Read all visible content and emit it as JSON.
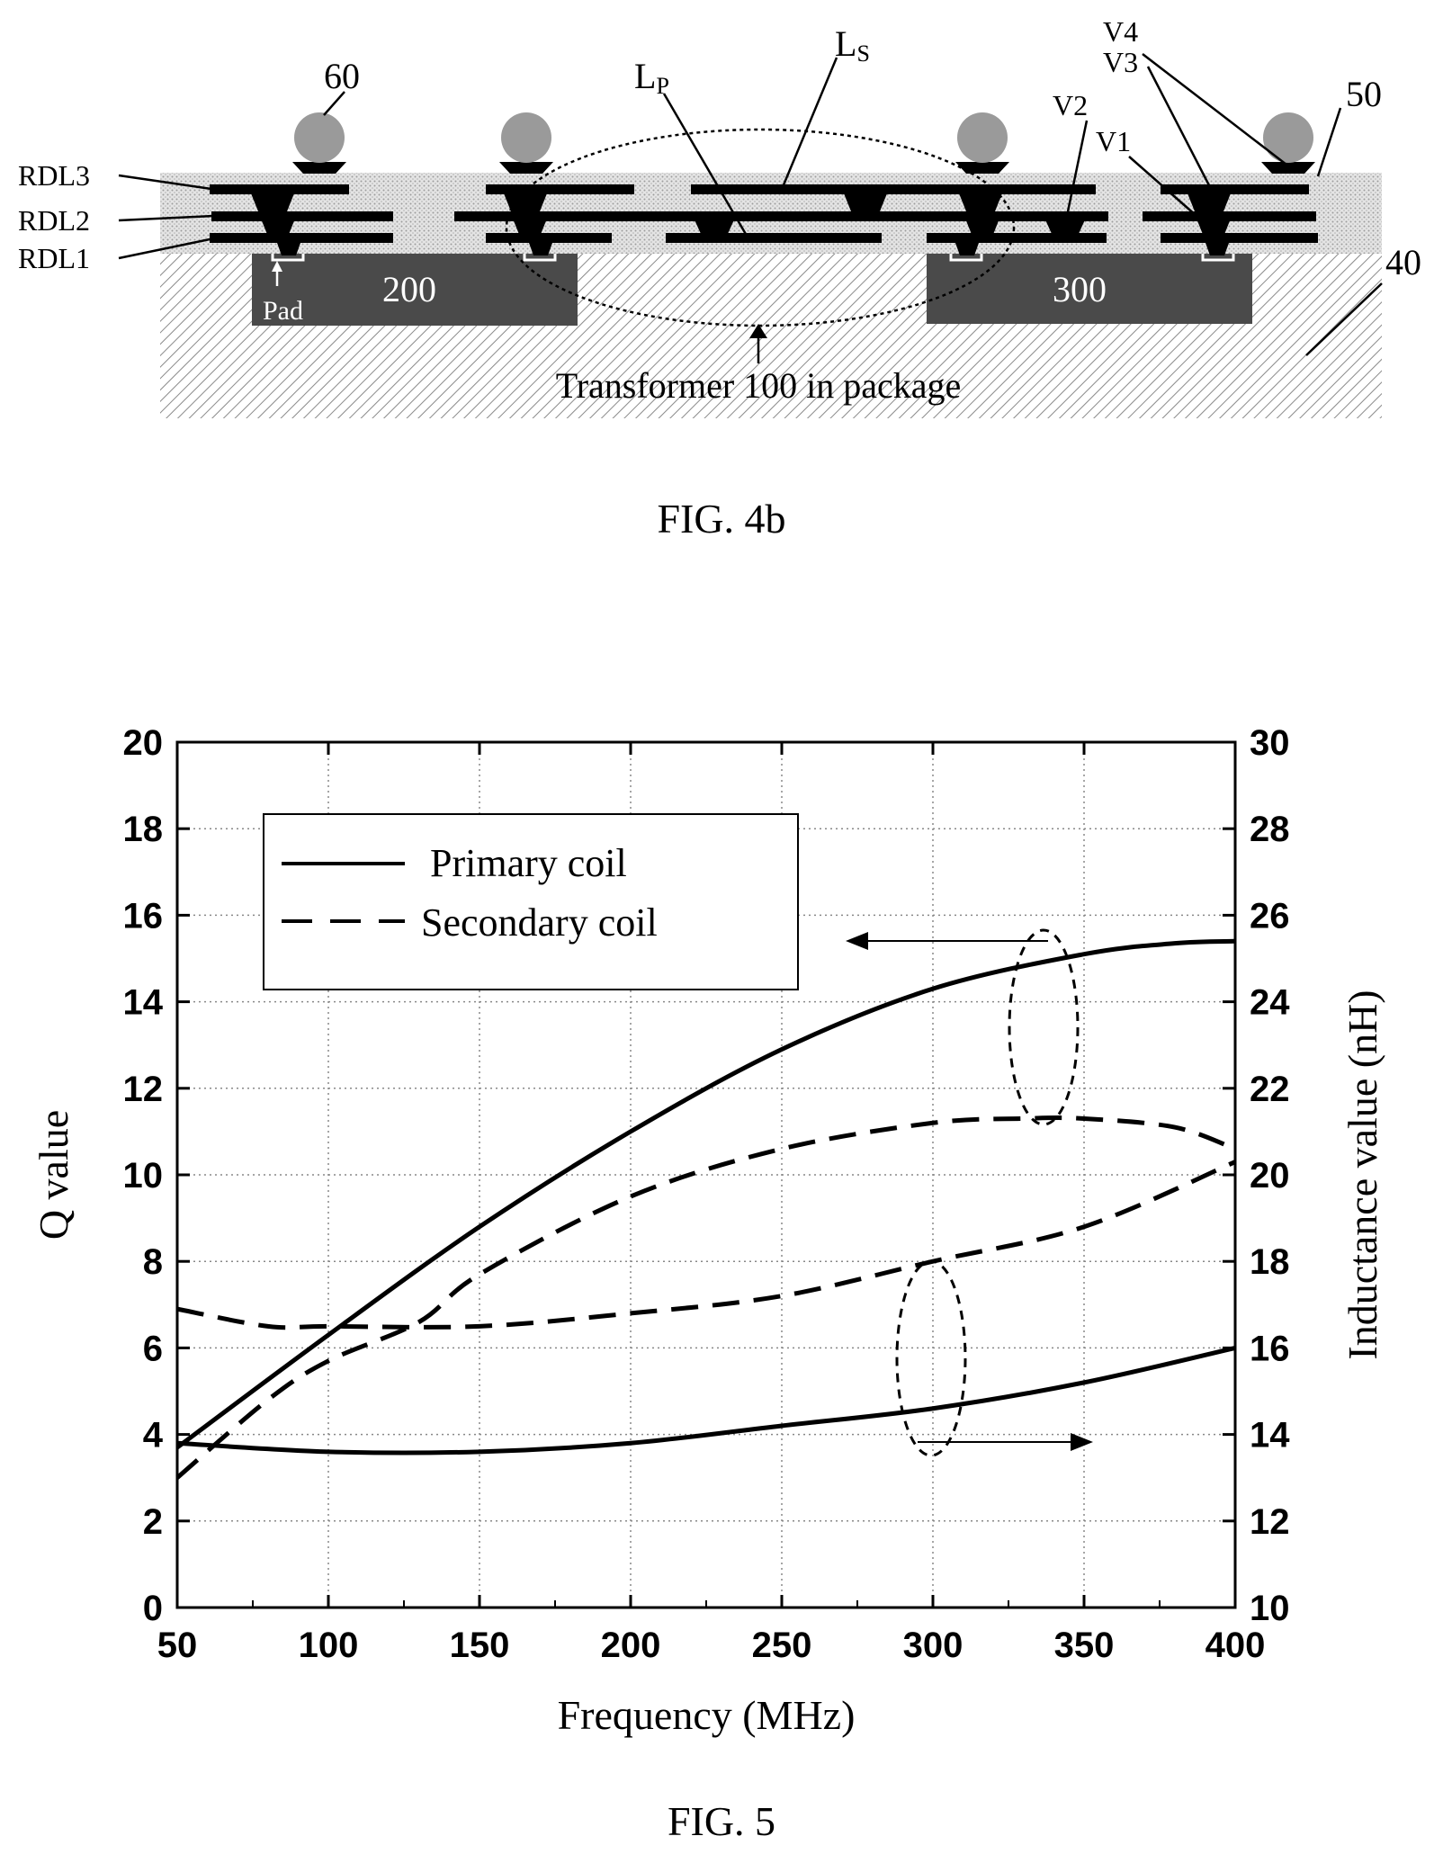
{
  "fig4b": {
    "caption": "FIG. 4b",
    "labels": {
      "rdl3": "RDL3",
      "rdl2": "RDL2",
      "rdl1": "RDL1",
      "ref60": "60",
      "ref50": "50",
      "ref40": "40",
      "lp_main": "L",
      "lp_sub": "P",
      "ls_main": "L",
      "ls_sub": "S",
      "v1": "V1",
      "v2": "V2",
      "v3": "V3",
      "v4": "V4",
      "pad": "Pad",
      "die200": "200",
      "die300": "300",
      "transformer": "Transformer 100 in package"
    },
    "colors": {
      "die": "#4a4a4a",
      "metal": "#000000",
      "ball": "#9a9a9a"
    }
  },
  "fig5": {
    "caption": "FIG. 5",
    "legend": {
      "primary": "Primary coil",
      "secondary": "Secondary coil"
    },
    "chart_data": {
      "type": "line",
      "xlabel": "Frequency (MHz)",
      "ylabel_left": "Q value",
      "ylabel_right": "Inductance value (nH)",
      "xlim": [
        50,
        400
      ],
      "ylim_left": [
        0,
        20
      ],
      "ylim_right": [
        10,
        30
      ],
      "xticks": [
        "50",
        "100",
        "150",
        "200",
        "250",
        "300",
        "350",
        "400"
      ],
      "yticks_left": [
        "0",
        "2",
        "4",
        "6",
        "8",
        "10",
        "12",
        "14",
        "16",
        "18",
        "20"
      ],
      "yticks_right": [
        "10",
        "12",
        "14",
        "16",
        "18",
        "20",
        "22",
        "24",
        "26",
        "28",
        "30"
      ],
      "grid": true,
      "legend_position": "top-left",
      "series": [
        {
          "name": "Primary coil",
          "axis": "left",
          "style": "solid",
          "x": [
            50,
            100,
            150,
            200,
            250,
            300,
            350,
            380,
            400
          ],
          "y": [
            3.7,
            6.3,
            8.8,
            11.0,
            12.9,
            14.3,
            15.1,
            15.35,
            15.4
          ]
        },
        {
          "name": "Secondary coil",
          "axis": "left",
          "style": "dashed",
          "x": [
            50,
            80,
            100,
            130,
            150,
            200,
            250,
            300,
            330,
            350,
            380,
            400
          ],
          "y": [
            3.0,
            4.8,
            5.7,
            6.6,
            7.7,
            9.5,
            10.6,
            11.2,
            11.3,
            11.3,
            11.1,
            10.6
          ]
        },
        {
          "name": "Primary coil",
          "axis": "right",
          "style": "solid",
          "x": [
            50,
            100,
            150,
            200,
            250,
            300,
            350,
            400
          ],
          "y": [
            13.8,
            13.6,
            13.6,
            13.8,
            14.2,
            14.6,
            15.2,
            16.0
          ]
        },
        {
          "name": "Secondary coil",
          "axis": "right",
          "style": "dashed",
          "x": [
            50,
            80,
            100,
            150,
            200,
            250,
            300,
            350,
            400
          ],
          "y": [
            16.9,
            16.5,
            16.5,
            16.5,
            16.8,
            17.2,
            18.0,
            18.8,
            20.3
          ]
        }
      ],
      "annotations": [
        {
          "type": "arrow",
          "direction": "left",
          "points_to_axis": "left"
        },
        {
          "type": "arrow",
          "direction": "right",
          "points_to_axis": "right"
        }
      ]
    }
  }
}
